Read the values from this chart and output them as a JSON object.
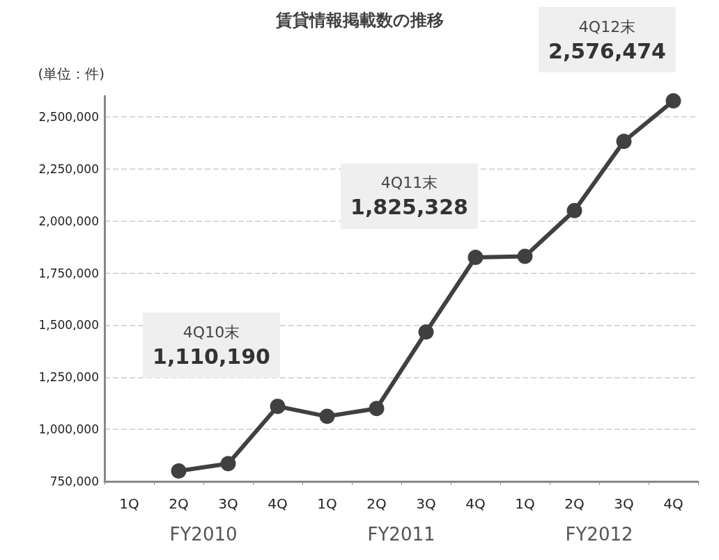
{
  "chart_data": {
    "type": "line",
    "title": "賃貸情報掲載数の推移",
    "ylabel": "(単位：件)",
    "categories": [
      "1Q",
      "2Q",
      "3Q",
      "4Q",
      "1Q",
      "2Q",
      "3Q",
      "4Q",
      "1Q",
      "2Q",
      "3Q",
      "4Q"
    ],
    "series": [
      {
        "color": "#404040",
        "values": [
          null,
          800000,
          835000,
          1110190,
          1062000,
          1100000,
          1467000,
          1825328,
          1830000,
          2050000,
          2382000,
          2576474
        ],
        "value_labels": [
          null,
          null,
          null,
          "4Q10末\n1,110,190",
          null,
          null,
          null,
          "4Q11末\n1,825,328",
          null,
          null,
          null,
          "4Q12末\n2,576,474"
        ]
      }
    ],
    "annotations": [
      "FY2010",
      "FY2011",
      "FY2012"
    ],
    "ylim": [
      750000,
      2600000
    ],
    "yticks": [
      {
        "value": 750000,
        "label": "750,000"
      },
      {
        "value": 1000000,
        "label": "1,000,000"
      },
      {
        "value": 1250000,
        "label": "1,250,000"
      },
      {
        "value": 1500000,
        "label": "1,500,000"
      },
      {
        "value": 1750000,
        "label": "1,750,000"
      },
      {
        "value": 2000000,
        "label": "2,000,000"
      },
      {
        "value": 2250000,
        "label": "2,250,000"
      },
      {
        "value": 2500000,
        "label": "2,500,000"
      }
    ],
    "grid": "y",
    "marker": "circle",
    "line_style": "solid"
  }
}
